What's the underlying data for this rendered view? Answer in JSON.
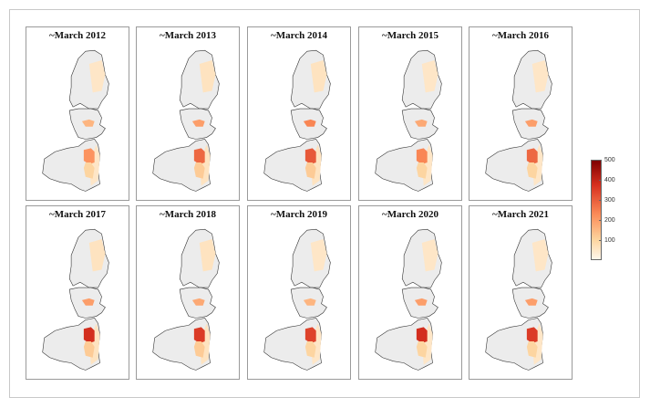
{
  "panels": [
    {
      "title": "~March 2012",
      "level_a": 60,
      "level_b": 180,
      "level_c": 240
    },
    {
      "title": "~March 2013",
      "level_a": 70,
      "level_b": 220,
      "level_c": 300
    },
    {
      "title": "~March 2014",
      "level_a": 70,
      "level_b": 260,
      "level_c": 320
    },
    {
      "title": "~March 2015",
      "level_a": 60,
      "level_b": 200,
      "level_c": 260
    },
    {
      "title": "~March 2016",
      "level_a": 60,
      "level_b": 220,
      "level_c": 300
    },
    {
      "title": "~March 2017",
      "level_a": 70,
      "level_b": 220,
      "level_c": 380
    },
    {
      "title": "~March 2018",
      "level_a": 70,
      "level_b": 200,
      "level_c": 360
    },
    {
      "title": "~March 2019",
      "level_a": 60,
      "level_b": 180,
      "level_c": 350
    },
    {
      "title": "~March 2020",
      "level_a": 60,
      "level_b": 220,
      "level_c": 380
    },
    {
      "title": "~March 2021",
      "level_a": 60,
      "level_b": 220,
      "level_c": 360
    }
  ],
  "legend": {
    "min": 0,
    "max": 500,
    "ticks": [
      {
        "value": 100,
        "label": "100"
      },
      {
        "value": 200,
        "label": "200"
      },
      {
        "value": 300,
        "label": "300"
      },
      {
        "value": 400,
        "label": "400"
      },
      {
        "value": 500,
        "label": "500"
      }
    ],
    "colors": [
      "#fff7ec",
      "#fdd49e",
      "#fc8d59",
      "#d7301f",
      "#7f0000"
    ]
  }
}
